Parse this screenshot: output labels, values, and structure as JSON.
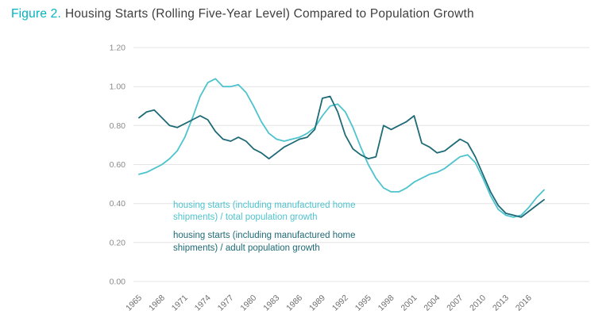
{
  "title": {
    "prefix": "Figure 2.",
    "text": "Housing Starts (Rolling Five-Year Level) Compared to Population Growth"
  },
  "colors": {
    "accent": "#00b3c2",
    "series_total": "#4ec3cd",
    "series_adult": "#1e6a76",
    "grid": "#e4e4e4",
    "title_text": "#3f3f3f",
    "axis_text": "#8a8a8a"
  },
  "chart_data": {
    "type": "line",
    "title": "Figure 2. Housing Starts (Rolling Five-Year Level) Compared to Population Growth",
    "xlabel": "",
    "ylabel": "",
    "grid": true,
    "legend_position": "inside-lower-left",
    "xlim": [
      1965,
      2018
    ],
    "ylim": [
      0,
      1.2
    ],
    "yticks": [
      0,
      0.2,
      0.4,
      0.6,
      0.8,
      1.0,
      1.2
    ],
    "ytick_labels": [
      "0.00",
      "0.20",
      "0.40",
      "0.60",
      "0.80",
      "1.00",
      "1.20"
    ],
    "xticks": [
      1965,
      1968,
      1971,
      1974,
      1977,
      1980,
      1983,
      1986,
      1989,
      1992,
      1995,
      1998,
      2001,
      2004,
      2007,
      2010,
      2013,
      2016
    ],
    "xtick_labels": [
      "1965",
      "1968",
      "1971",
      "1974",
      "1977",
      "1980",
      "1983",
      "1986",
      "1989",
      "1992",
      "1995",
      "1998",
      "2001",
      "2004",
      "2007",
      "2010",
      "2013",
      "2016"
    ],
    "x": [
      1965,
      1966,
      1967,
      1968,
      1969,
      1970,
      1971,
      1972,
      1973,
      1974,
      1975,
      1976,
      1977,
      1978,
      1979,
      1980,
      1981,
      1982,
      1983,
      1984,
      1985,
      1986,
      1987,
      1988,
      1989,
      1990,
      1991,
      1992,
      1993,
      1994,
      1995,
      1996,
      1997,
      1998,
      1999,
      2000,
      2001,
      2002,
      2003,
      2004,
      2005,
      2006,
      2007,
      2008,
      2009,
      2010,
      2011,
      2012,
      2013,
      2014,
      2015,
      2016,
      2017,
      2018
    ],
    "series": [
      {
        "name": "housing starts (including manufactured home shipments) / total population growth",
        "color": "#4ec3cd",
        "values": [
          0.55,
          0.56,
          0.58,
          0.6,
          0.63,
          0.67,
          0.74,
          0.84,
          0.95,
          1.02,
          1.04,
          1.0,
          1.0,
          1.01,
          0.97,
          0.9,
          0.82,
          0.76,
          0.73,
          0.72,
          0.73,
          0.74,
          0.76,
          0.79,
          0.85,
          0.9,
          0.91,
          0.87,
          0.79,
          0.69,
          0.6,
          0.53,
          0.48,
          0.46,
          0.46,
          0.48,
          0.51,
          0.53,
          0.55,
          0.56,
          0.58,
          0.61,
          0.64,
          0.65,
          0.61,
          0.53,
          0.44,
          0.37,
          0.34,
          0.33,
          0.34,
          0.38,
          0.43,
          0.47
        ]
      },
      {
        "name": "housing starts (including manufactured home shipments) / adult population growth",
        "color": "#1e6a76",
        "values": [
          0.84,
          0.87,
          0.88,
          0.84,
          0.8,
          0.79,
          0.81,
          0.83,
          0.85,
          0.83,
          0.77,
          0.73,
          0.72,
          0.74,
          0.72,
          0.68,
          0.66,
          0.63,
          0.66,
          0.69,
          0.71,
          0.73,
          0.74,
          0.78,
          0.94,
          0.95,
          0.87,
          0.75,
          0.68,
          0.65,
          0.63,
          0.64,
          0.8,
          0.78,
          0.8,
          0.82,
          0.85,
          0.71,
          0.69,
          0.66,
          0.67,
          0.7,
          0.73,
          0.71,
          0.64,
          0.55,
          0.46,
          0.39,
          0.35,
          0.34,
          0.33,
          0.36,
          0.39,
          0.42
        ]
      }
    ]
  }
}
